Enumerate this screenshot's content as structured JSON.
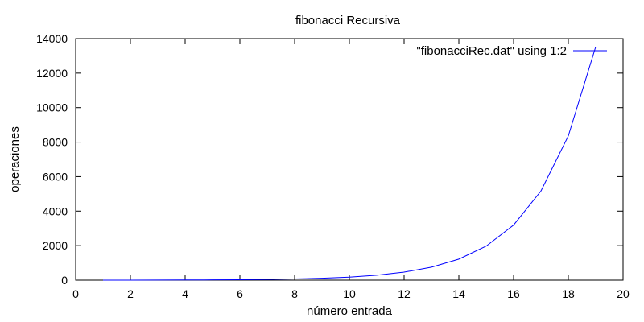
{
  "chart_data": {
    "type": "line",
    "title": "fibonacci Recursiva",
    "xlabel": "número entrada",
    "ylabel": "operaciones",
    "xlim": [
      0,
      20
    ],
    "ylim": [
      0,
      14000
    ],
    "xticks": [
      0,
      2,
      4,
      6,
      8,
      10,
      12,
      14,
      16,
      18,
      20
    ],
    "yticks": [
      0,
      2000,
      4000,
      6000,
      8000,
      10000,
      12000,
      14000
    ],
    "grid": false,
    "legend_position": "top-right",
    "series": [
      {
        "name": "\"fibonacciRec.dat\" using 1:2",
        "color": "#0000ff",
        "x": [
          1,
          2,
          3,
          4,
          5,
          6,
          7,
          8,
          9,
          10,
          11,
          12,
          13,
          14,
          15,
          16,
          17,
          18,
          19
        ],
        "y": [
          1,
          3,
          5,
          9,
          15,
          25,
          41,
          67,
          109,
          177,
          287,
          465,
          753,
          1219,
          1973,
          3193,
          5167,
          8361,
          13529
        ]
      }
    ]
  }
}
